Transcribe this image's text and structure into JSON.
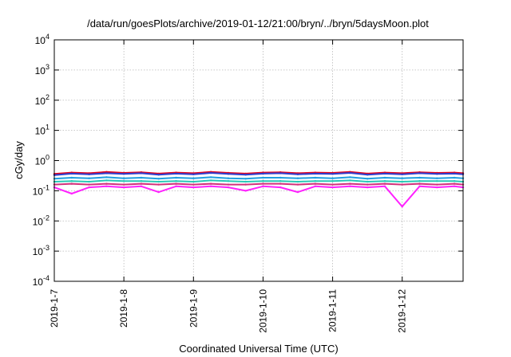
{
  "chart_data": {
    "type": "line",
    "title": "/data/run/goesPlots/archive/2019-01-12/21:00/bryn/../bryn/5daysMoon.plot",
    "xlabel": "Coordinated Universal Time (UTC)",
    "ylabel": "cGy/day",
    "yscale": "log",
    "ylim": [
      0.0001,
      10000
    ],
    "xlim": [
      "2019-01-07",
      "2019-01-12T21:00"
    ],
    "grid": true,
    "legend": "none",
    "y_ticks": [
      {
        "base": "10",
        "exp": "-4",
        "value": 0.0001
      },
      {
        "base": "10",
        "exp": "-3",
        "value": 0.001
      },
      {
        "base": "10",
        "exp": "-2",
        "value": 0.01
      },
      {
        "base": "10",
        "exp": "-1",
        "value": 0.1
      },
      {
        "base": "10",
        "exp": "0",
        "value": 1
      },
      {
        "base": "10",
        "exp": "1",
        "value": 10
      },
      {
        "base": "10",
        "exp": "2",
        "value": 100
      },
      {
        "base": "10",
        "exp": "3",
        "value": 1000
      },
      {
        "base": "10",
        "exp": "4",
        "value": 10000
      }
    ],
    "x_ticks": [
      {
        "label": "2019-1-7",
        "value": "2019-01-07"
      },
      {
        "label": "2019-1-8",
        "value": "2019-01-08"
      },
      {
        "label": "2019-1-9",
        "value": "2019-01-09"
      },
      {
        "label": "2019-1-10",
        "value": "2019-01-10"
      },
      {
        "label": "2019-1-11",
        "value": "2019-01-11"
      },
      {
        "label": "2019-1-12",
        "value": "2019-01-12"
      }
    ],
    "x": [
      "2019-01-07T00:00",
      "2019-01-07T06:00",
      "2019-01-07T12:00",
      "2019-01-07T18:00",
      "2019-01-08T00:00",
      "2019-01-08T06:00",
      "2019-01-08T12:00",
      "2019-01-08T18:00",
      "2019-01-09T00:00",
      "2019-01-09T06:00",
      "2019-01-09T12:00",
      "2019-01-09T18:00",
      "2019-01-10T00:00",
      "2019-01-10T06:00",
      "2019-01-10T12:00",
      "2019-01-10T18:00",
      "2019-01-11T00:00",
      "2019-01-11T06:00",
      "2019-01-11T12:00",
      "2019-01-11T18:00",
      "2019-01-12T00:00",
      "2019-01-12T06:00",
      "2019-01-12T12:00",
      "2019-01-12T18:00",
      "2019-01-12T21:00"
    ],
    "series": [
      {
        "color": "#e3001b",
        "values": [
          0.36,
          0.4,
          0.38,
          0.42,
          0.39,
          0.41,
          0.37,
          0.4,
          0.38,
          0.42,
          0.39,
          0.37,
          0.4,
          0.41,
          0.38,
          0.4,
          0.39,
          0.42,
          0.37,
          0.4,
          0.38,
          0.41,
          0.39,
          0.4,
          0.38
        ]
      },
      {
        "color": "#2d3fd1",
        "values": [
          0.33,
          0.37,
          0.35,
          0.38,
          0.36,
          0.38,
          0.34,
          0.37,
          0.35,
          0.39,
          0.36,
          0.34,
          0.37,
          0.38,
          0.35,
          0.37,
          0.36,
          0.39,
          0.34,
          0.37,
          0.35,
          0.38,
          0.36,
          0.37,
          0.35
        ]
      },
      {
        "color": "#1f9fe0",
        "values": [
          0.25,
          0.27,
          0.26,
          0.28,
          0.26,
          0.27,
          0.25,
          0.27,
          0.26,
          0.28,
          0.26,
          0.25,
          0.27,
          0.27,
          0.26,
          0.27,
          0.26,
          0.28,
          0.25,
          0.27,
          0.26,
          0.27,
          0.26,
          0.27,
          0.26
        ]
      },
      {
        "color": "#27c9b6",
        "values": [
          0.2,
          0.21,
          0.2,
          0.22,
          0.21,
          0.21,
          0.2,
          0.21,
          0.2,
          0.22,
          0.21,
          0.2,
          0.21,
          0.21,
          0.2,
          0.21,
          0.21,
          0.22,
          0.2,
          0.21,
          0.2,
          0.21,
          0.21,
          0.21,
          0.2
        ]
      },
      {
        "color": "#d2307a",
        "values": [
          0.16,
          0.17,
          0.16,
          0.17,
          0.16,
          0.17,
          0.16,
          0.17,
          0.16,
          0.17,
          0.16,
          0.16,
          0.17,
          0.17,
          0.16,
          0.17,
          0.16,
          0.17,
          0.16,
          0.17,
          0.16,
          0.17,
          0.16,
          0.17,
          0.16
        ]
      },
      {
        "color": "#ff22ff",
        "values": [
          0.13,
          0.08,
          0.13,
          0.14,
          0.13,
          0.14,
          0.09,
          0.14,
          0.13,
          0.14,
          0.13,
          0.1,
          0.14,
          0.13,
          0.09,
          0.14,
          0.13,
          0.14,
          0.13,
          0.14,
          0.03,
          0.14,
          0.13,
          0.14,
          0.13
        ]
      }
    ]
  }
}
